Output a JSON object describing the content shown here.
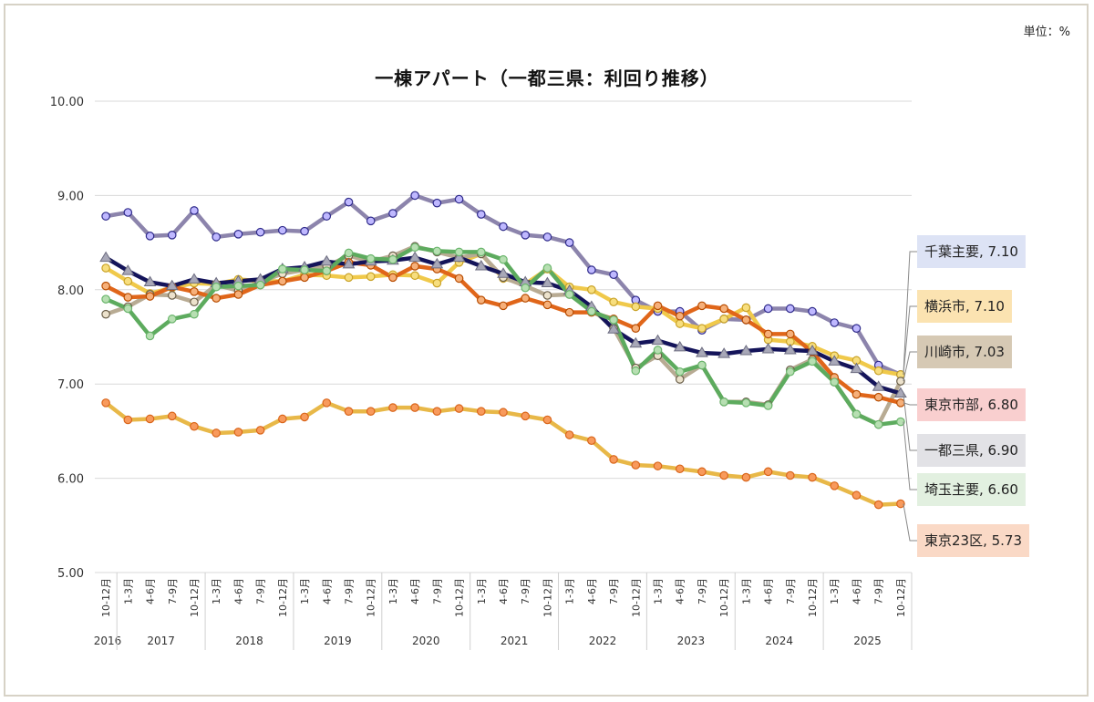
{
  "unit_label": "単位：%",
  "chart_data": {
    "type": "line",
    "title": "一棟アパート（一都三県：利回り推移）",
    "xlabel": "",
    "ylabel": "",
    "ylim": [
      5.0,
      10.0
    ],
    "ytick_labels": [
      "5.00",
      "6.00",
      "7.00",
      "8.00",
      "9.00",
      "10.00"
    ],
    "grid": true,
    "categories": [
      "10-12月",
      "1-3月",
      "4-6月",
      "7-9月",
      "10-12月",
      "1-3月",
      "4-6月",
      "7-9月",
      "10-12月",
      "1-3月",
      "4-6月",
      "7-9月",
      "10-12月",
      "1-3月",
      "4-6月",
      "7-9月",
      "10-12月",
      "1-3月",
      "4-6月",
      "7-9月",
      "10-12月",
      "1-3月",
      "4-6月",
      "7-9月",
      "10-12月",
      "1-3月",
      "4-6月",
      "7-9月",
      "10-12月",
      "1-3月",
      "4-6月",
      "7-9月",
      "10-12月",
      "1-3月",
      "4-6月",
      "7-9月",
      "10-12月"
    ],
    "year_groups": [
      {
        "label": "2016",
        "count": 1
      },
      {
        "label": "2017",
        "count": 4
      },
      {
        "label": "2018",
        "count": 4
      },
      {
        "label": "2019",
        "count": 4
      },
      {
        "label": "2020",
        "count": 4
      },
      {
        "label": "2021",
        "count": 4
      },
      {
        "label": "2022",
        "count": 4
      },
      {
        "label": "2023",
        "count": 4
      },
      {
        "label": "2024",
        "count": 4
      },
      {
        "label": "2025",
        "count": 4
      }
    ],
    "series": [
      {
        "name": "千葉主要",
        "label": "千葉主要, 7.10",
        "line_color": "#8c84ac",
        "marker_fill": "#bfb8ff",
        "marker_stroke": "#2e2a8a",
        "marker": "circle",
        "label_bg": "#dde3f5",
        "values": [
          8.78,
          8.82,
          8.57,
          8.58,
          8.84,
          8.56,
          8.59,
          8.61,
          8.63,
          8.62,
          8.78,
          8.93,
          8.73,
          8.81,
          9.0,
          8.92,
          8.96,
          8.8,
          8.67,
          8.58,
          8.56,
          8.5,
          8.21,
          8.16,
          7.89,
          7.77,
          7.77,
          7.57,
          7.69,
          7.68,
          7.8,
          7.8,
          7.77,
          7.65,
          7.59,
          7.2,
          7.1
        ]
      },
      {
        "name": "横浜市",
        "label": "横浜市, 7.10",
        "line_color": "#f0c94a",
        "marker_fill": "#f7de7e",
        "marker_stroke": "#c9a227",
        "marker": "circle",
        "label_bg": "#fbe3b1",
        "values": [
          8.23,
          8.09,
          7.96,
          8.02,
          8.07,
          8.06,
          8.11,
          8.09,
          8.09,
          8.16,
          8.15,
          8.13,
          8.14,
          8.16,
          8.15,
          8.07,
          8.29,
          8.38,
          8.12,
          8.06,
          8.22,
          8.03,
          8.0,
          7.87,
          7.82,
          7.8,
          7.64,
          7.59,
          7.69,
          7.81,
          7.47,
          7.45,
          7.4,
          7.3,
          7.25,
          7.14,
          7.1
        ]
      },
      {
        "name": "川崎市",
        "label": "川崎市, 7.03",
        "line_color": "#b8ab93",
        "marker_fill": "#ece2cc",
        "marker_stroke": "#6a5f4a",
        "marker": "circle",
        "label_bg": "#d6c9b4",
        "values": [
          7.74,
          7.82,
          7.95,
          7.94,
          7.87,
          8.05,
          7.99,
          8.08,
          8.17,
          8.21,
          8.25,
          8.36,
          8.3,
          8.36,
          8.46,
          8.4,
          8.34,
          8.38,
          8.13,
          8.04,
          7.94,
          7.95,
          7.8,
          7.59,
          7.17,
          7.3,
          7.05,
          7.2,
          6.81,
          6.81,
          6.78,
          7.15,
          7.26,
          7.02,
          6.68,
          6.57,
          7.03
        ]
      },
      {
        "name": "東京市部",
        "label": "東京市部, 6.80",
        "line_color": "#e0661a",
        "marker_fill": "#f6b07a",
        "marker_stroke": "#b84c00",
        "marker": "circle",
        "label_bg": "#f9cfcf",
        "values": [
          8.04,
          7.92,
          7.93,
          8.03,
          7.98,
          7.91,
          7.95,
          8.05,
          8.09,
          8.13,
          8.2,
          8.29,
          8.26,
          8.13,
          8.25,
          8.22,
          8.12,
          7.89,
          7.83,
          7.91,
          7.84,
          7.76,
          7.76,
          7.69,
          7.59,
          7.83,
          7.72,
          7.83,
          7.8,
          7.68,
          7.53,
          7.53,
          7.34,
          7.07,
          6.89,
          6.86,
          6.8
        ]
      },
      {
        "name": "一都三県",
        "label": "一都三県, 6.90",
        "line_color": "#14145a",
        "marker_fill": "#a8a8b8",
        "marker_stroke": "#6c6c80",
        "marker": "triangle",
        "label_bg": "#e2e2e6",
        "values": [
          8.34,
          8.2,
          8.08,
          8.04,
          8.11,
          8.07,
          8.09,
          8.11,
          8.22,
          8.24,
          8.3,
          8.27,
          8.3,
          8.31,
          8.34,
          8.27,
          8.34,
          8.25,
          8.17,
          8.08,
          8.07,
          7.99,
          7.82,
          7.58,
          7.43,
          7.46,
          7.39,
          7.33,
          7.32,
          7.35,
          7.37,
          7.36,
          7.35,
          7.24,
          7.16,
          6.97,
          6.9
        ]
      },
      {
        "name": "埼玉主要",
        "label": "埼玉主要, 6.60",
        "line_color": "#5dab5e",
        "marker_fill": "#b7dfb2",
        "marker_stroke": "#6ab56c",
        "marker": "circle",
        "label_bg": "#e2f0e0",
        "values": [
          7.9,
          7.8,
          7.51,
          7.69,
          7.74,
          8.03,
          8.04,
          8.05,
          8.22,
          8.21,
          8.2,
          8.39,
          8.33,
          8.32,
          8.45,
          8.41,
          8.4,
          8.4,
          8.32,
          8.02,
          8.23,
          7.95,
          7.77,
          7.68,
          7.14,
          7.36,
          7.13,
          7.2,
          6.81,
          6.8,
          6.77,
          7.13,
          7.24,
          7.02,
          6.68,
          6.57,
          6.6
        ]
      },
      {
        "name": "東京23区",
        "label": "東京23区, 5.73",
        "line_color": "#e8b848",
        "marker_fill": "#f89a5c",
        "marker_stroke": "#d9651a",
        "marker": "circle",
        "label_bg": "#fad9c6",
        "values": [
          6.8,
          6.62,
          6.63,
          6.66,
          6.55,
          6.48,
          6.49,
          6.51,
          6.63,
          6.65,
          6.8,
          6.71,
          6.71,
          6.75,
          6.75,
          6.71,
          6.74,
          6.71,
          6.7,
          6.66,
          6.62,
          6.46,
          6.4,
          6.2,
          6.14,
          6.13,
          6.1,
          6.07,
          6.03,
          6.01,
          6.07,
          6.03,
          6.01,
          5.92,
          5.82,
          5.72,
          5.73
        ]
      }
    ]
  }
}
